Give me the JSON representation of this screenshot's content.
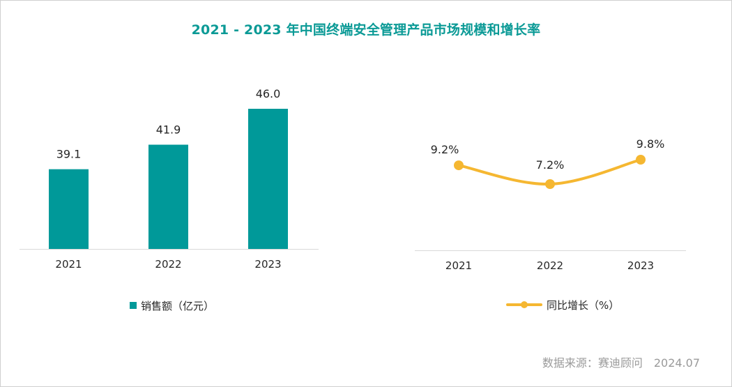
{
  "title": "2021 - 2023 年中国终端安全管理产品市场规模和增长率",
  "source": "数据来源：赛迪顾问　2024.07",
  "colors": {
    "title": "#0b9a96",
    "bar": "#009999",
    "line": "#f5b731",
    "axis": "#d9d9d9",
    "text": "#262626",
    "source": "#9a9a9a"
  },
  "chart_data": [
    {
      "type": "bar",
      "title": "",
      "categories": [
        "2021",
        "2022",
        "2023"
      ],
      "values": [
        39.1,
        41.9,
        46.0
      ],
      "value_labels": [
        "39.1",
        "41.9",
        "46.0"
      ],
      "series_name": "销售额（亿元）",
      "legend": "bottom",
      "ylim": [
        30,
        48
      ],
      "grid": false
    },
    {
      "type": "line",
      "title": "",
      "categories": [
        "2021",
        "2022",
        "2023"
      ],
      "values": [
        9.2,
        7.2,
        9.8
      ],
      "value_labels": [
        "9.2%",
        "7.2%",
        "9.8%"
      ],
      "series_name": "同比增长（%）",
      "legend": "bottom",
      "ylim": [
        0,
        12
      ],
      "smooth": true,
      "grid": false
    }
  ]
}
